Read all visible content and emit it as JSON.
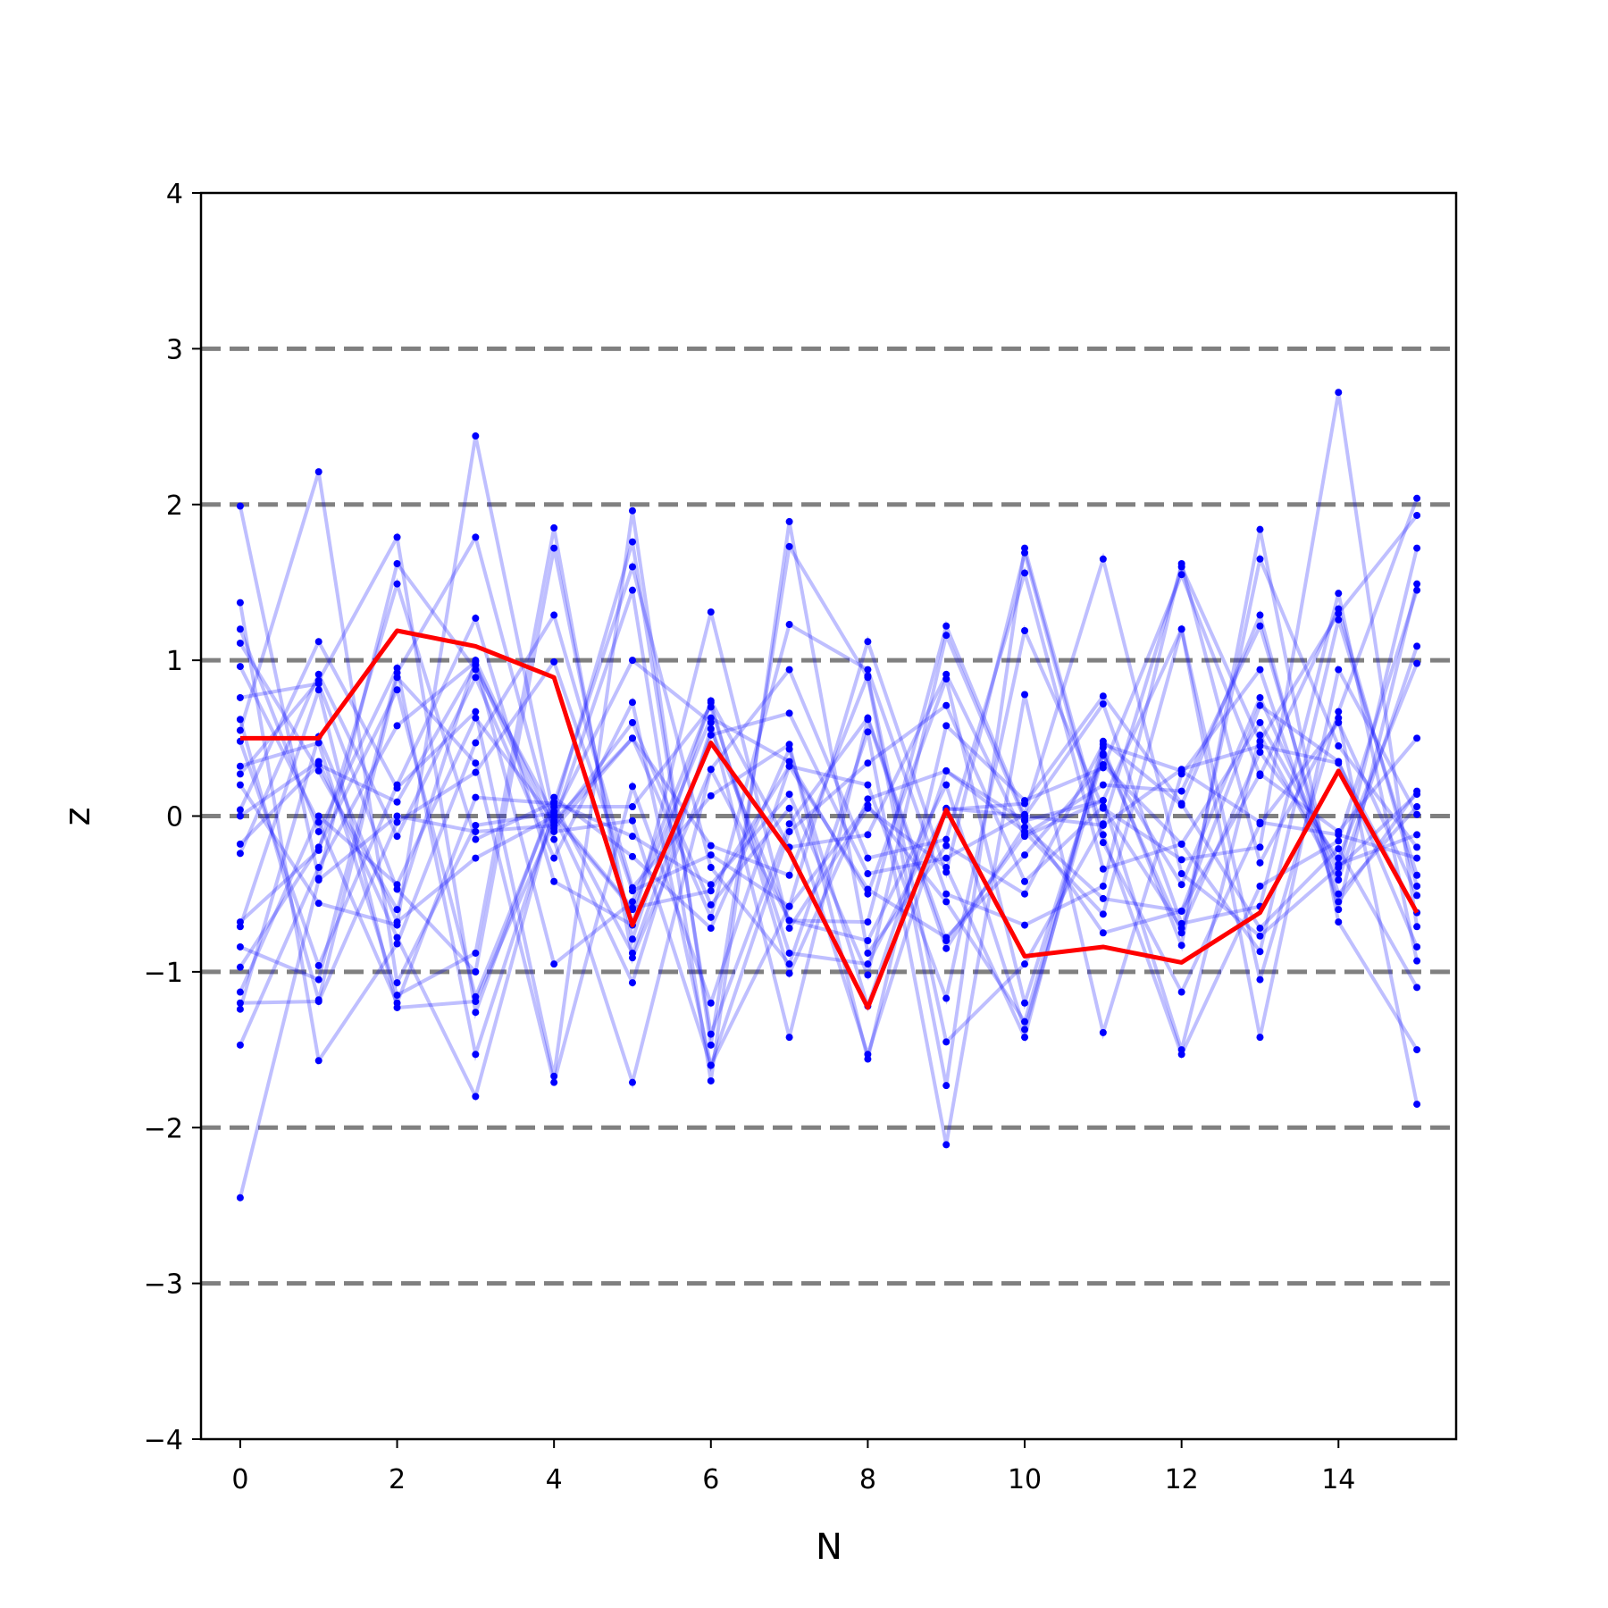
{
  "chart_data": {
    "type": "line",
    "title": "",
    "xlabel": "N",
    "ylabel": "z",
    "xlim": [
      -0.5,
      15.5
    ],
    "ylim": [
      -4,
      4
    ],
    "xticks": [
      0,
      2,
      4,
      6,
      8,
      10,
      12,
      14
    ],
    "yticks": [
      -4,
      -3,
      -2,
      -1,
      0,
      1,
      2,
      3,
      4
    ],
    "ytick_labels": [
      "−4",
      "−3",
      "−2",
      "−1",
      "0",
      "1",
      "2",
      "3",
      "4"
    ],
    "reference_lines": [
      -3,
      -2,
      -1,
      0,
      1,
      2,
      3
    ],
    "grid": false,
    "x": [
      0,
      1,
      2,
      3,
      4,
      5,
      6,
      7,
      8,
      9,
      10,
      11,
      12,
      13,
      14,
      15
    ],
    "highlight": {
      "color": "#ff0000",
      "values": [
        0.5,
        0.5,
        1.19,
        1.09,
        0.89,
        -0.7,
        0.47,
        -0.23,
        -1.23,
        0.04,
        -0.9,
        -0.84,
        -0.94,
        -0.62,
        0.29,
        -0.62
      ]
    },
    "background_series": {
      "color": "#0000ff",
      "opacity": 0.25,
      "series": [
        [
          1.99,
          -0.4,
          1.62,
          0.94,
          0.0,
          -0.6,
          0.63,
          0.35,
          -0.5,
          0.88,
          -1.2,
          0.4,
          -0.75,
          1.65,
          0.45,
          -0.2
        ],
        [
          1.37,
          -1.57,
          -0.82,
          0.47,
          1.29,
          -0.46,
          0.13,
          0.46,
          -1.56,
          0.58,
          0.1,
          0.31,
          1.55,
          0.26,
          1.33,
          -0.45
        ],
        [
          1.2,
          -0.1,
          0.95,
          -1.53,
          0.03,
          1.76,
          -1.4,
          -0.05,
          0.63,
          -0.8,
          -0.12,
          0.2,
          0.16,
          1.22,
          -0.5,
          0.06
        ],
        [
          1.11,
          0.29,
          -0.6,
          1.0,
          -0.08,
          0.5,
          -0.65,
          1.23,
          0.94,
          -0.5,
          -0.7,
          -0.45,
          1.62,
          -0.3,
          0.63,
          -1.85
        ],
        [
          0.96,
          -0.04,
          -1.2,
          0.12,
          0.08,
          1.6,
          -0.33,
          -0.95,
          0.54,
          -2.11,
          0.78,
          -1.39,
          0.27,
          0.94,
          -0.55,
          0.16
        ],
        [
          0.76,
          0.85,
          -0.47,
          -1.0,
          1.72,
          -0.79,
          0.74,
          -0.2,
          -0.12,
          0.91,
          -0.13,
          0.1,
          -1.5,
          0.52,
          -0.41,
          1.09
        ],
        [
          0.62,
          -1.18,
          0.89,
          0.34,
          -1.71,
          0.19,
          -1.2,
          0.32,
          0.2,
          -1.17,
          1.19,
          0.05,
          -0.28,
          -0.2,
          2.72,
          -0.71
        ],
        [
          0.48,
          -0.96,
          0.2,
          1.27,
          -0.42,
          -0.7,
          1.31,
          -0.72,
          0.05,
          -0.33,
          -1.42,
          0.48,
          0.07,
          1.29,
          -0.6,
          1.49
        ],
        [
          0.32,
          0.47,
          -1.15,
          -0.88,
          1.85,
          -0.91,
          0.3,
          -0.67,
          -0.68,
          1.22,
          0.0,
          0.72,
          -0.69,
          -0.58,
          1.43,
          -0.93
        ],
        [
          0.27,
          0.87,
          1.79,
          -1.26,
          0.12,
          -0.26,
          -0.72,
          0.43,
          -1.22,
          0.29,
          -0.1,
          -0.63,
          1.2,
          -1.42,
          0.94,
          0.01
        ],
        [
          0.2,
          -0.56,
          -0.7,
          2.44,
          0.0,
          -1.07,
          0.56,
          -0.67,
          -0.8,
          0.2,
          -1.37,
          0.39,
          -0.44,
          0.76,
          -0.37,
          1.72
        ],
        [
          0.04,
          1.12,
          0.18,
          0.67,
          -1.67,
          1.96,
          -1.47,
          1.73,
          0.89,
          -1.73,
          1.72,
          -0.12,
          -1.53,
          -0.45,
          -0.16,
          1.45
        ],
        [
          0.0,
          0.35,
          -0.78,
          -1.8,
          0.06,
          0.06,
          0.7,
          -0.88,
          -0.95,
          0.04,
          0.08,
          0.77,
          0.08,
          -0.72,
          -0.21,
          -1.1
        ],
        [
          -0.18,
          0.33,
          0.09,
          0.97,
          -0.15,
          -1.71,
          0.3,
          0.94,
          -0.27,
          -0.15,
          1.56,
          -0.34,
          -0.18,
          -0.87,
          1.26,
          -0.38
        ],
        [
          -0.24,
          0.91,
          -0.13,
          0.89,
          -0.27,
          0.73,
          -1.6,
          -0.1,
          0.34,
          0.71,
          -0.42,
          0.06,
          -0.72,
          0.41,
          -0.27,
          0.98
        ],
        [
          -0.68,
          -0.22,
          1.49,
          -0.15,
          0.09,
          -0.13,
          -0.44,
          0.14,
          -1.02,
          1.16,
          -0.02,
          -0.75,
          -0.61,
          0.71,
          0.35,
          -0.84
        ],
        [
          -0.71,
          0.81,
          -1.23,
          -1.19,
          -0.04,
          1.45,
          -1.7,
          1.89,
          -0.88,
          -0.19,
          -0.5,
          0.46,
          0.29,
          -0.04,
          -0.12,
          -0.27
        ],
        [
          -0.84,
          -1.05,
          0.92,
          1.79,
          -0.1,
          -0.03,
          -1.6,
          -0.58,
          1.12,
          -0.36,
          1.69,
          -0.17,
          -1.13,
          -0.05,
          0.6,
          -0.51
        ],
        [
          -0.97,
          -0.2,
          0.81,
          -1.16,
          0.08,
          -0.88,
          0.52,
          0.66,
          -0.37,
          -0.27,
          0.01,
          1.65,
          -0.37,
          -0.77,
          -0.33,
          0.14
        ],
        [
          -1.13,
          0.0,
          -0.44,
          0.63,
          -0.03,
          0.5,
          -0.19,
          -0.38,
          0.9,
          -1.45,
          -0.95,
          -0.05,
          1.6,
          0.48,
          1.3,
          1.93
        ],
        [
          -1.2,
          -1.19,
          -0.04,
          0.28,
          0.99,
          -0.48,
          -0.25,
          -0.58,
          0.07,
          -0.55,
          -1.32,
          0.44,
          -0.83,
          1.84,
          -0.68,
          -1.5
        ],
        [
          -1.24,
          0.51,
          -0.68,
          -0.27,
          0.0,
          1.0,
          0.6,
          -1.42,
          0.62,
          -0.85,
          -0.07,
          -0.53,
          -0.61,
          0.27,
          -0.1,
          0.5
        ],
        [
          -1.47,
          -0.33,
          0.58,
          0.99,
          -0.95,
          -0.55,
          0.73,
          -1.01,
          0.11,
          0.29,
          -0.03,
          0.1,
          1.2,
          -1.05,
          0.67,
          2.04
        ],
        [
          -2.45,
          -0.41,
          0.0,
          -0.1,
          -0.06,
          0.6,
          -0.57,
          0.05,
          -1.53,
          0.05,
          0.0,
          -0.06,
          0.3,
          0.45,
          0.34,
          -0.62
        ],
        [
          0.55,
          2.21,
          -1.07,
          -0.06,
          0.02,
          -0.59,
          -0.48,
          0.32,
          -0.47,
          -0.78,
          -0.25,
          0.33,
          -0.18,
          0.6,
          -0.31,
          -0.12
        ]
      ]
    }
  }
}
